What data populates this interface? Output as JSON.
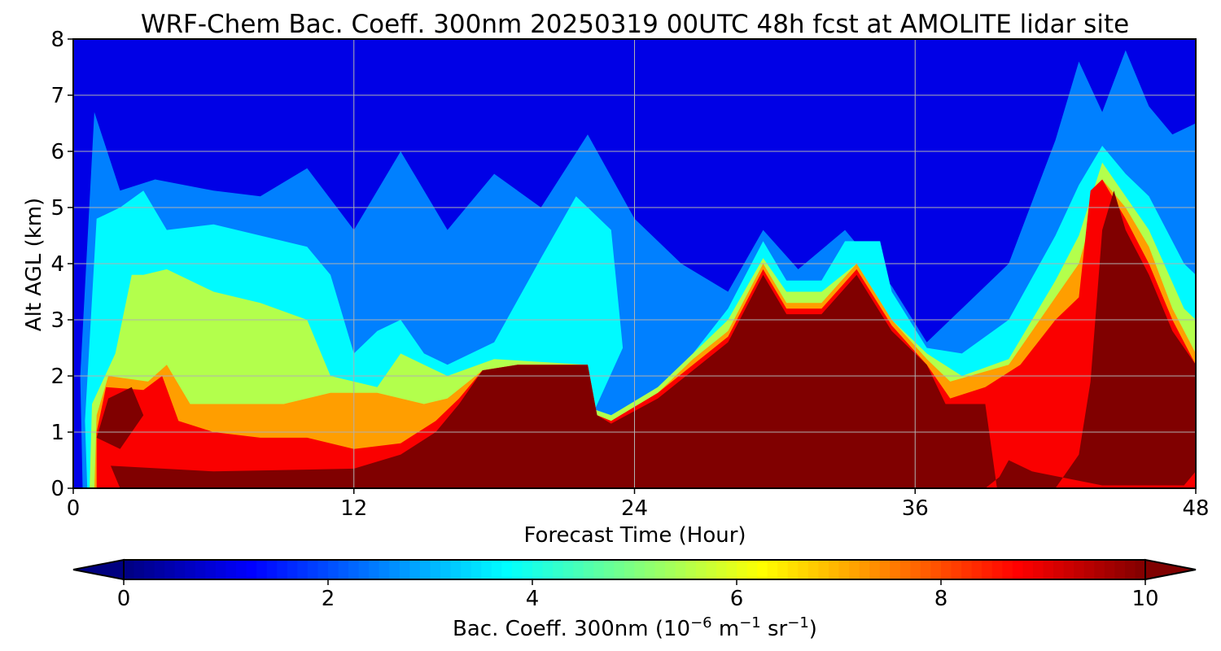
{
  "chart_data": {
    "type": "heatmap",
    "title": "WRF-Chem Bac. Coeff. 300nm  20250319 00UTC 48h fcst at AMOLITE lidar site",
    "xlabel": "Forecast Time (Hour)",
    "ylabel": "Alt AGL (km)",
    "xlim": [
      0,
      48
    ],
    "ylim": [
      0,
      8
    ],
    "x_ticks": [
      0,
      12,
      24,
      36,
      48
    ],
    "y_ticks": [
      0,
      1,
      2,
      3,
      4,
      5,
      6,
      7,
      8
    ],
    "grid": true,
    "colormap": "jet",
    "colorbar": {
      "orientation": "horizontal",
      "position": "bottom",
      "extend": "both",
      "min": 0,
      "max": 10,
      "ticks": [
        0,
        2,
        4,
        6,
        8,
        10
      ],
      "label": "Bac. Coeff. 300nm  (10",
      "label_exp1": "−6",
      "label_mid": " m",
      "label_exp2": "−1",
      "label_mid2": " sr",
      "label_exp3": "−1",
      "label_end": ")"
    },
    "regions": [
      {
        "level": 2.5,
        "points": [
          [
            0.4,
            0
          ],
          [
            0.3,
            2
          ],
          [
            0.9,
            6.7
          ],
          [
            2,
            5.3
          ],
          [
            3.5,
            5.5
          ],
          [
            6,
            5.3
          ],
          [
            8,
            5.2
          ],
          [
            10,
            5.7
          ],
          [
            12,
            4.6
          ],
          [
            14,
            6.0
          ],
          [
            16,
            4.6
          ],
          [
            18,
            5.6
          ],
          [
            20,
            5.0
          ],
          [
            22,
            6.3
          ],
          [
            24,
            4.8
          ],
          [
            26,
            4.0
          ],
          [
            28,
            3.5
          ],
          [
            29.5,
            4.6
          ],
          [
            31,
            3.9
          ],
          [
            33,
            4.6
          ],
          [
            35,
            3.6
          ],
          [
            36.5,
            2.6
          ],
          [
            38,
            3.2
          ],
          [
            40,
            4.0
          ],
          [
            42,
            6.2
          ],
          [
            43,
            7.6
          ],
          [
            44,
            6.7
          ],
          [
            45,
            7.8
          ],
          [
            46,
            6.8
          ],
          [
            47,
            6.3
          ],
          [
            48,
            6.5
          ],
          [
            48,
            0
          ]
        ]
      },
      {
        "level": 3.7,
        "points": [
          [
            0.6,
            0
          ],
          [
            0.5,
            1.2
          ],
          [
            1,
            4.8
          ],
          [
            2,
            5.0
          ],
          [
            3,
            5.3
          ],
          [
            4,
            4.6
          ],
          [
            6,
            4.7
          ],
          [
            8,
            4.5
          ],
          [
            10,
            4.3
          ],
          [
            11,
            3.8
          ],
          [
            12,
            2.4
          ],
          [
            13,
            2.8
          ],
          [
            14,
            3.0
          ],
          [
            15,
            2.4
          ],
          [
            16,
            2.2
          ],
          [
            18,
            2.6
          ],
          [
            20,
            4.1
          ],
          [
            21.5,
            5.2
          ],
          [
            23,
            4.6
          ],
          [
            23.5,
            2.5
          ],
          [
            22.3,
            1.4
          ],
          [
            23,
            1.3
          ],
          [
            25,
            1.8
          ],
          [
            26.5,
            2.4
          ],
          [
            28,
            3.2
          ],
          [
            29.5,
            4.4
          ],
          [
            30.5,
            3.7
          ],
          [
            32,
            3.7
          ],
          [
            33,
            4.4
          ],
          [
            34.5,
            4.4
          ],
          [
            35,
            3.5
          ],
          [
            36.5,
            2.5
          ],
          [
            38,
            2.4
          ],
          [
            40,
            3.0
          ],
          [
            42,
            4.5
          ],
          [
            43,
            5.4
          ],
          [
            44,
            6.1
          ],
          [
            45,
            5.6
          ],
          [
            46,
            5.2
          ],
          [
            47.5,
            4.0
          ],
          [
            48,
            3.8
          ],
          [
            48,
            0
          ]
        ]
      },
      {
        "level": 5.5,
        "points": [
          [
            0.7,
            0
          ],
          [
            0.8,
            1.5
          ],
          [
            1.8,
            2.4
          ],
          [
            2.5,
            3.8
          ],
          [
            3,
            3.8
          ],
          [
            4,
            3.9
          ],
          [
            6,
            3.5
          ],
          [
            8,
            3.3
          ],
          [
            10,
            3.0
          ],
          [
            11,
            2.0
          ],
          [
            13,
            1.8
          ],
          [
            14,
            2.4
          ],
          [
            15,
            2.2
          ],
          [
            16,
            2.0
          ],
          [
            18,
            2.3
          ],
          [
            22,
            2.2
          ],
          [
            22.3,
            1.4
          ],
          [
            23,
            1.3
          ],
          [
            25,
            1.8
          ],
          [
            26.5,
            2.4
          ],
          [
            28,
            3.0
          ],
          [
            29.5,
            4.1
          ],
          [
            30.5,
            3.5
          ],
          [
            32,
            3.5
          ],
          [
            33.5,
            4.0
          ],
          [
            35,
            3.0
          ],
          [
            36.5,
            2.4
          ],
          [
            38,
            2.0
          ],
          [
            40,
            2.3
          ],
          [
            42,
            3.7
          ],
          [
            43,
            4.5
          ],
          [
            44,
            5.8
          ],
          [
            45,
            5.2
          ],
          [
            46,
            4.6
          ],
          [
            47.5,
            3.2
          ],
          [
            48,
            3.0
          ],
          [
            48,
            0
          ]
        ]
      },
      {
        "level": 7.2,
        "points": [
          [
            0.9,
            0
          ],
          [
            1.0,
            1.3
          ],
          [
            1.5,
            2.0
          ],
          [
            3.2,
            1.9
          ],
          [
            4,
            2.2
          ],
          [
            5,
            1.5
          ],
          [
            7,
            1.5
          ],
          [
            9,
            1.5
          ],
          [
            11,
            1.7
          ],
          [
            13,
            1.7
          ],
          [
            15,
            1.5
          ],
          [
            16,
            1.6
          ],
          [
            17.5,
            2.1
          ],
          [
            19,
            2.2
          ],
          [
            21,
            2.2
          ],
          [
            22,
            2.2
          ],
          [
            22.4,
            1.3
          ],
          [
            23,
            1.2
          ],
          [
            25,
            1.7
          ],
          [
            26.5,
            2.3
          ],
          [
            28,
            2.8
          ],
          [
            29.5,
            4.0
          ],
          [
            30.5,
            3.3
          ],
          [
            32,
            3.3
          ],
          [
            33.5,
            4.0
          ],
          [
            35,
            3.0
          ],
          [
            36.5,
            2.3
          ],
          [
            37.5,
            1.9
          ],
          [
            40,
            2.2
          ],
          [
            42,
            3.4
          ],
          [
            43,
            4.0
          ],
          [
            44,
            5.5
          ],
          [
            45,
            5.0
          ],
          [
            46,
            4.3
          ],
          [
            47,
            3.2
          ],
          [
            48,
            2.4
          ],
          [
            48,
            0
          ]
        ]
      },
      {
        "level": 8.8,
        "points": [
          [
            1.0,
            0
          ],
          [
            1.0,
            1.0
          ],
          [
            1.4,
            1.8
          ],
          [
            3,
            1.75
          ],
          [
            3.8,
            2.0
          ],
          [
            4.5,
            1.2
          ],
          [
            6,
            1.0
          ],
          [
            8,
            0.9
          ],
          [
            10,
            0.9
          ],
          [
            12,
            0.7
          ],
          [
            14,
            0.8
          ],
          [
            15.5,
            1.2
          ],
          [
            16.5,
            1.6
          ],
          [
            17.5,
            2.1
          ],
          [
            19,
            2.2
          ],
          [
            21,
            2.2
          ],
          [
            22,
            2.2
          ],
          [
            22.4,
            1.3
          ],
          [
            23,
            1.2
          ],
          [
            25,
            1.7
          ],
          [
            26.5,
            2.2
          ],
          [
            28,
            2.7
          ],
          [
            29.5,
            3.9
          ],
          [
            30.5,
            3.2
          ],
          [
            32,
            3.2
          ],
          [
            33.5,
            3.9
          ],
          [
            35,
            2.9
          ],
          [
            36.5,
            2.2
          ],
          [
            37.5,
            1.6
          ],
          [
            39,
            1.8
          ],
          [
            40.5,
            2.2
          ],
          [
            42,
            3.0
          ],
          [
            43,
            3.4
          ],
          [
            43.5,
            5.3
          ],
          [
            44,
            5.5
          ],
          [
            45,
            4.8
          ],
          [
            46,
            4.0
          ],
          [
            47,
            3.0
          ],
          [
            48,
            2.2
          ],
          [
            48,
            0
          ]
        ]
      },
      {
        "level": 10.5,
        "points": [
          [
            1.6,
            0.4
          ],
          [
            6,
            0.3
          ],
          [
            12,
            0.35
          ],
          [
            14,
            0.6
          ],
          [
            15.5,
            1.0
          ],
          [
            16.5,
            1.5
          ],
          [
            17.5,
            2.1
          ],
          [
            19,
            2.2
          ],
          [
            21,
            2.2
          ],
          [
            22,
            2.2
          ],
          [
            22.4,
            1.3
          ],
          [
            23,
            1.15
          ],
          [
            25,
            1.6
          ],
          [
            26.5,
            2.1
          ],
          [
            28,
            2.6
          ],
          [
            29.5,
            3.8
          ],
          [
            30.5,
            3.1
          ],
          [
            32,
            3.1
          ],
          [
            33.5,
            3.8
          ],
          [
            35,
            2.8
          ],
          [
            36.5,
            2.2
          ],
          [
            37.3,
            1.5
          ],
          [
            39,
            1.5
          ],
          [
            39.5,
            0
          ],
          [
            42,
            0
          ],
          [
            43,
            0.6
          ],
          [
            43.5,
            1.9
          ],
          [
            44,
            4.6
          ],
          [
            44.5,
            5.3
          ],
          [
            45,
            4.6
          ],
          [
            46,
            3.8
          ],
          [
            47,
            2.8
          ],
          [
            48,
            2.2
          ],
          [
            48,
            0.3
          ],
          [
            47.5,
            0.05
          ],
          [
            44,
            0.05
          ],
          [
            41,
            0.3
          ],
          [
            40,
            0.5
          ],
          [
            39.6,
            0.2
          ],
          [
            39,
            0
          ],
          [
            36,
            0
          ],
          [
            24,
            0
          ],
          [
            12,
            0
          ],
          [
            2,
            0
          ]
        ]
      },
      {
        "level": 10.5,
        "points": [
          [
            1.0,
            0.9
          ],
          [
            1.5,
            1.6
          ],
          [
            2.5,
            1.8
          ],
          [
            3.0,
            1.3
          ],
          [
            2.0,
            0.7
          ]
        ]
      }
    ]
  }
}
